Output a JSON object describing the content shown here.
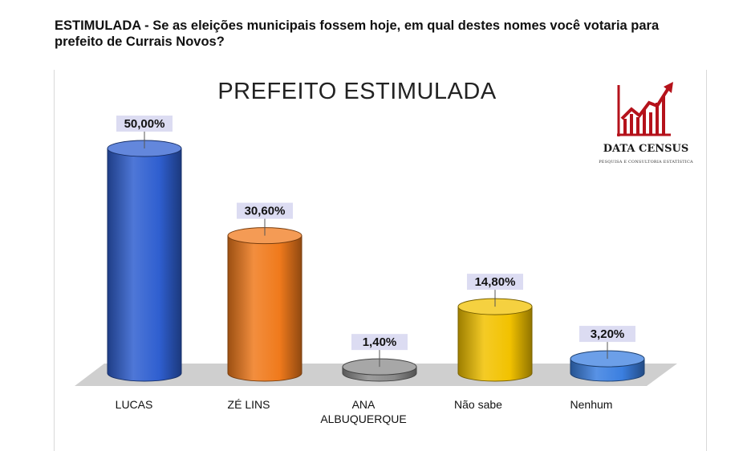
{
  "question": "ESTIMULADA - Se as eleições municipais fossem hoje, em qual destes nomes você votaria para prefeito de Currais Novos?",
  "brand": {
    "name": "DATA CENSUS",
    "tagline": "PESQUISA E CONSULTORIA ESTATÍSTICA",
    "color": "#b5121b"
  },
  "chart_data": {
    "type": "bar",
    "title": "PREFEITO ESTIMULADA",
    "categories": [
      "LUCAS",
      "ZÉ LINS",
      "ANA ALBUQUERQUE",
      "Não sabe",
      "Nenhum"
    ],
    "values": [
      50.0,
      30.6,
      1.4,
      14.8,
      3.2
    ],
    "value_labels": [
      "50,00%",
      "30,60%",
      "1,40%",
      "14,80%",
      "3,20%"
    ],
    "colors": [
      "#2f5fd0",
      "#f07a1c",
      "#8a8a8a",
      "#f2c200",
      "#3b7fe0"
    ],
    "ylim": [
      0,
      50
    ],
    "grid": false,
    "legend": "none"
  }
}
